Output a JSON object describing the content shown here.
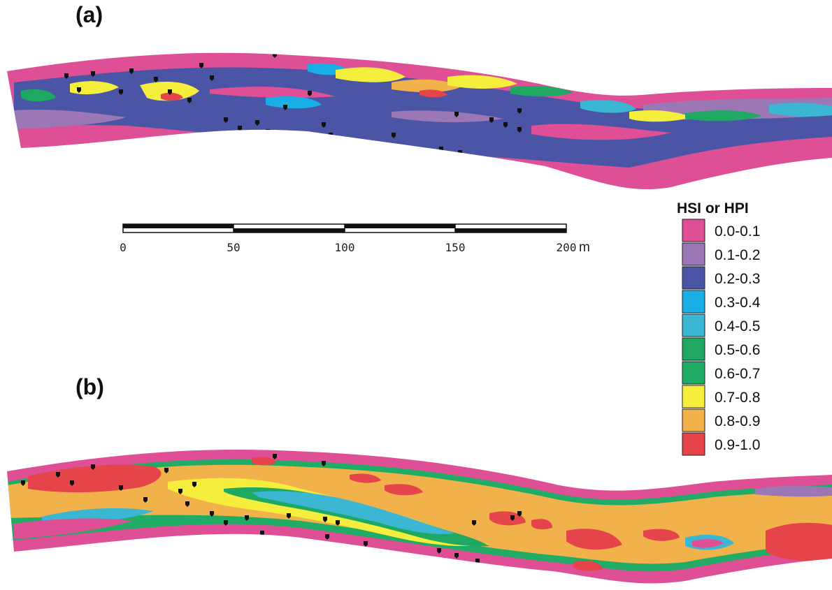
{
  "panels": [
    {
      "label": "(a)"
    },
    {
      "label": "(b)"
    }
  ],
  "scale_bar": {
    "ticks": [
      "0",
      "50",
      "100",
      "150",
      "200"
    ],
    "unit": "m"
  },
  "legend": {
    "title": "HSI or HPI",
    "classes": [
      {
        "label": "0.0-0.1",
        "color": "#df4f96"
      },
      {
        "label": "0.1-0.2",
        "color": "#9c77b6"
      },
      {
        "label": "0.2-0.3",
        "color": "#4a56a5"
      },
      {
        "label": "0.3-0.4",
        "color": "#1aaee6"
      },
      {
        "label": "0.4-0.5",
        "color": "#3cb7d3"
      },
      {
        "label": "0.5-0.6",
        "color": "#1fa862"
      },
      {
        "label": "0.6-0.7",
        "color": "#21ac66"
      },
      {
        "label": "0.7-0.8",
        "color": "#f6ee3c"
      },
      {
        "label": "0.8-0.9",
        "color": "#f1b24b"
      },
      {
        "label": "0.9-1.0",
        "color": "#e5444b"
      }
    ]
  }
}
